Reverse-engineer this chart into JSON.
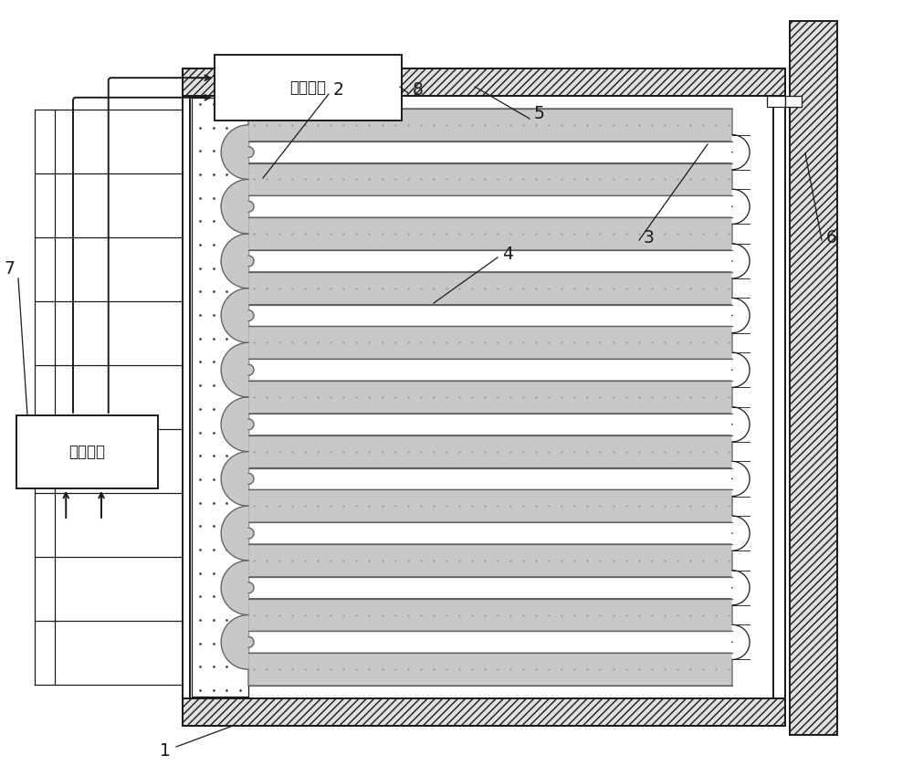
{
  "bg_color": "#ffffff",
  "lc": "#1a1a1a",
  "hatch_fill": "#e0e0e0",
  "spring_fill": "#c8c8c8",
  "dot_col": "#444444",
  "box1_text": "调理电路",
  "box2_text": "能量储存",
  "labels": [
    "1",
    "2",
    "3",
    "4",
    "5",
    "6",
    "7",
    "8"
  ],
  "n_beams": 11,
  "figw": 10.0,
  "figh": 8.5,
  "dpi": 100
}
